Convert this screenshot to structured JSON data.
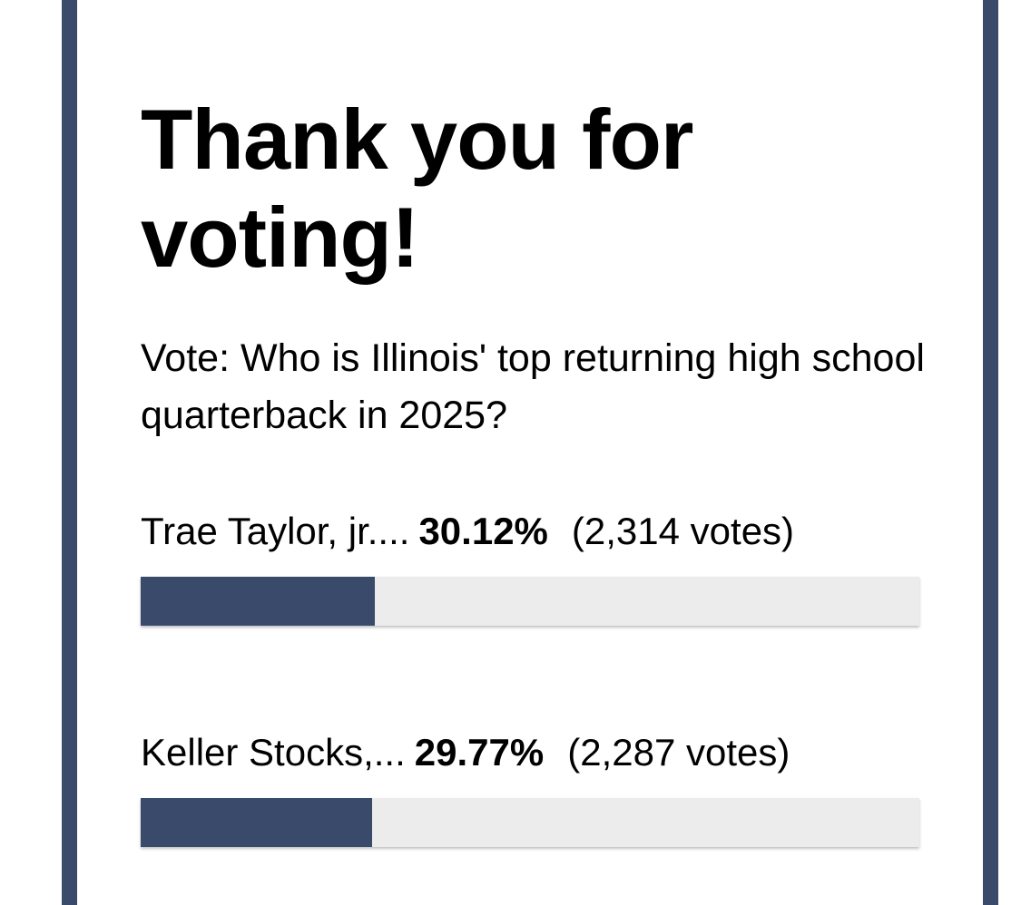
{
  "poll": {
    "heading": "Thank you for voting!",
    "question": "Vote: Who is Illinois' top returning high school quarterback in 2025?",
    "accent_color": "#3a4a6b",
    "track_color": "#ececec",
    "options": [
      {
        "name": "Trae Taylor, jr....",
        "percent_label": "30.12%",
        "votes_label": "(2,314 votes)",
        "fraction": 0.3012
      },
      {
        "name": "Keller Stocks,...",
        "percent_label": "29.77%",
        "votes_label": "(2,287 votes)",
        "fraction": 0.2977
      }
    ]
  }
}
